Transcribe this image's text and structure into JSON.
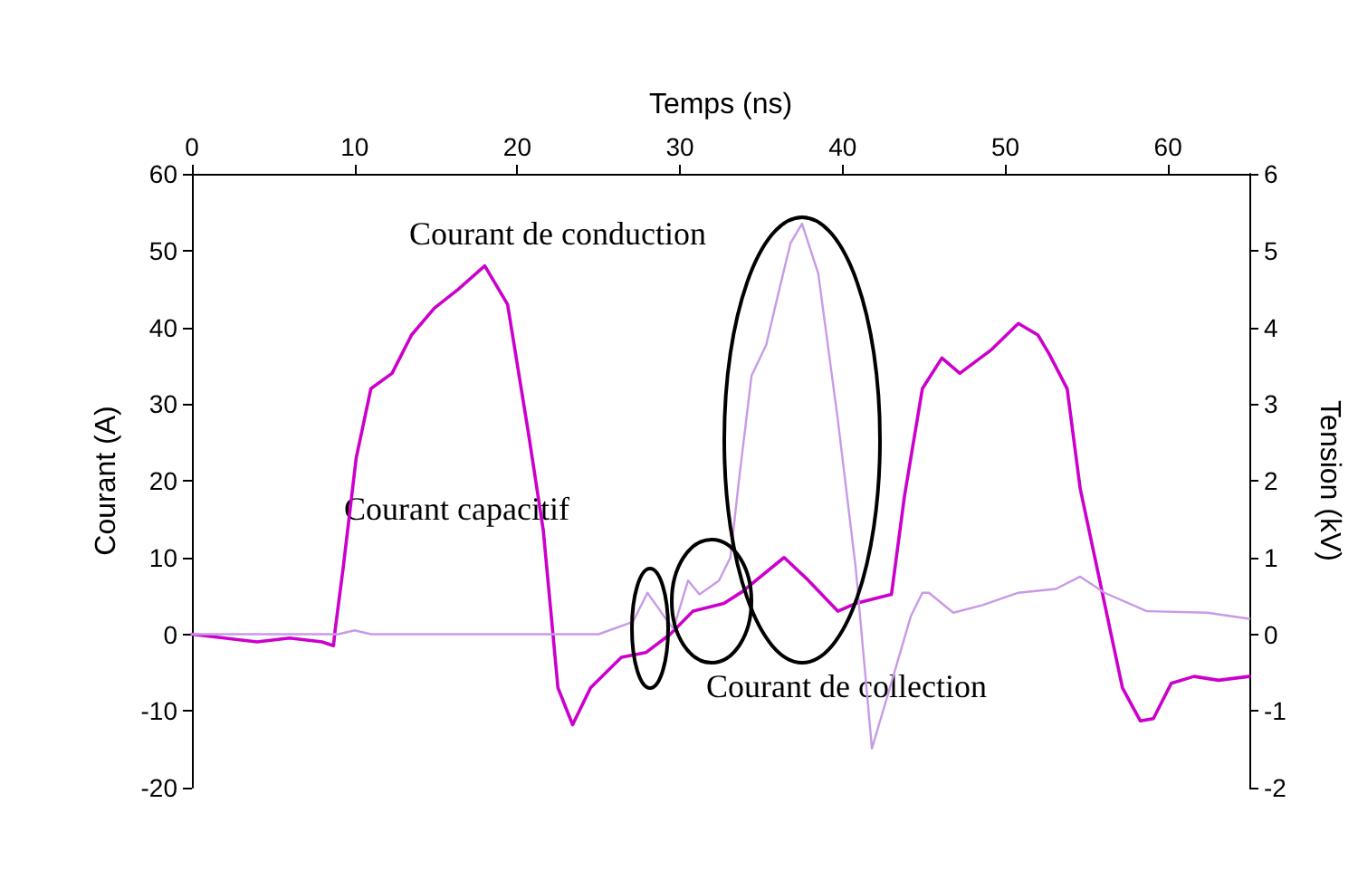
{
  "chart_data": {
    "type": "line",
    "xlabel": "Temps (ns)",
    "ylabel": "Courant (A)",
    "y2label": "Tension (kV)",
    "xlim": [
      0,
      65
    ],
    "xticks": [
      0,
      10,
      20,
      30,
      40,
      50,
      60
    ],
    "ylim": [
      -20,
      60
    ],
    "yticks": [
      -20,
      -10,
      0,
      10,
      20,
      30,
      40,
      50,
      60
    ],
    "y2lim": [
      -2,
      6
    ],
    "y2ticks": [
      -2,
      -1,
      0,
      1,
      2,
      3,
      4,
      5,
      6
    ],
    "grid": false,
    "marker": "none",
    "line_style": "solid",
    "annotations": [
      "Courant de conduction",
      "Courant capacitif",
      "Courant de collection"
    ],
    "series": [
      {
        "color": "#cc00cc",
        "axis": "y2",
        "x": [
          0,
          2,
          4,
          6,
          8,
          8.7,
          8.8,
          9.3,
          10.1,
          11,
          12.3,
          13.5,
          14.9,
          16.4,
          18,
          19.4,
          20.7,
          21.6,
          22.5,
          23.4,
          24.5,
          26.4,
          27.9,
          29.4,
          30.8,
          32.7,
          33.8,
          36.4,
          37.9,
          39.7,
          40.8,
          43,
          43.8,
          44.9,
          46.1,
          47.2,
          49.1,
          50.8,
          52,
          52.7,
          53.8,
          54.6,
          56.1,
          57.2,
          58.3,
          59.1,
          60.2,
          61.6,
          63.1,
          65
        ],
        "values": [
          0,
          -0.05,
          -0.1,
          -0.05,
          -0.1,
          -0.15,
          0.05,
          0.87,
          2.3,
          3.2,
          3.4,
          3.9,
          4.25,
          4.5,
          4.8,
          4.3,
          2.6,
          1.35,
          -0.7,
          -1.18,
          -0.7,
          -0.3,
          -0.24,
          0,
          0.3,
          0.4,
          0.55,
          1,
          0.7,
          0.3,
          0.4,
          0.52,
          1.8,
          3.2,
          3.6,
          3.4,
          3.7,
          4.05,
          3.9,
          3.65,
          3.2,
          1.9,
          0.4,
          -0.7,
          -1.13,
          -1.1,
          -0.64,
          -0.55,
          -0.6,
          -0.55
        ]
      },
      {
        "color": "#c89ae6",
        "axis": "y",
        "x": [
          0,
          5,
          9,
          10,
          11,
          15,
          20,
          25,
          27.1,
          28,
          29,
          29.6,
          30.5,
          31.2,
          32.4,
          33.1,
          33.6,
          34.4,
          35.3,
          36,
          36.8,
          37.5,
          38.5,
          39.7,
          40.8,
          41.8,
          42.9,
          44.2,
          44.9,
          45.3,
          46.8,
          48.6,
          50.8,
          53.1,
          54.6,
          56.1,
          58.7,
          62.4,
          65
        ],
        "values": [
          0,
          0,
          0,
          0.5,
          0,
          0,
          0,
          0,
          1.6,
          5.4,
          2.4,
          0.7,
          7,
          5.2,
          7,
          10,
          19.6,
          33.7,
          37.7,
          44,
          51,
          53.5,
          47,
          28,
          8.7,
          -14.9,
          -7,
          2.4,
          5.4,
          5.4,
          2.8,
          3.8,
          5.4,
          5.9,
          7.5,
          5.4,
          3,
          2.8,
          2
        ]
      }
    ]
  }
}
